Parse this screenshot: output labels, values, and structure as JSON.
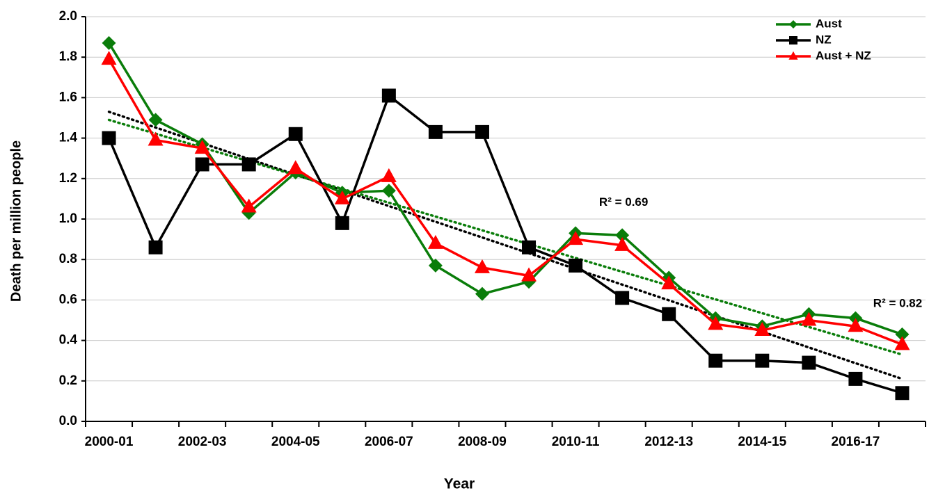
{
  "chart_data": {
    "type": "line",
    "x_label": "Year",
    "y_label": "Death per million people",
    "categories": [
      "2000-01",
      null,
      "2002-03",
      null,
      "2004-05",
      null,
      "2006-07",
      null,
      "2008-09",
      null,
      "2010-11",
      null,
      "2012-13",
      null,
      "2014-15",
      null,
      "2016-17",
      null
    ],
    "series": [
      {
        "name": "Aust",
        "color": "#0a7d0a",
        "marker": "diamond",
        "values": [
          1.87,
          1.49,
          1.37,
          1.03,
          1.23,
          1.13,
          1.14,
          0.77,
          0.63,
          0.69,
          0.93,
          0.92,
          0.71,
          0.51,
          0.47,
          0.53,
          0.51,
          0.43
        ]
      },
      {
        "name": "NZ",
        "color": "#000000",
        "marker": "square",
        "values": [
          1.4,
          0.86,
          1.27,
          1.27,
          1.42,
          0.98,
          1.61,
          1.43,
          1.43,
          0.86,
          0.77,
          0.61,
          0.53,
          0.3,
          0.3,
          0.29,
          0.21,
          0.14
        ]
      },
      {
        "name": "Aust + NZ",
        "color": "#ff0000",
        "marker": "triangle",
        "values": [
          1.79,
          1.39,
          1.35,
          1.06,
          1.25,
          1.1,
          1.21,
          0.88,
          0.76,
          0.72,
          0.9,
          0.87,
          0.68,
          0.48,
          0.45,
          0.5,
          0.47,
          0.38
        ]
      }
    ],
    "trendlines": [
      {
        "color": "#000000",
        "values": [
          1.53,
          0.21
        ]
      },
      {
        "color": "#0a7d0a",
        "values": [
          1.49,
          0.33
        ]
      }
    ],
    "annotations": [
      {
        "text": "R² = 0.69",
        "color": "#000000"
      },
      {
        "text": "R² = 0.82",
        "color": "#0a7d0a"
      }
    ],
    "ylim": [
      0,
      2
    ],
    "yticks": [
      {
        "value": 0,
        "label": "0.0"
      },
      0.2,
      0.4,
      0.6,
      0.8,
      {
        "value": 1,
        "label": "1.0"
      },
      1.2,
      1.4,
      1.6,
      1.8,
      {
        "value": 2,
        "label": "2.0"
      }
    ],
    "grid": true,
    "legend": "top-right"
  }
}
